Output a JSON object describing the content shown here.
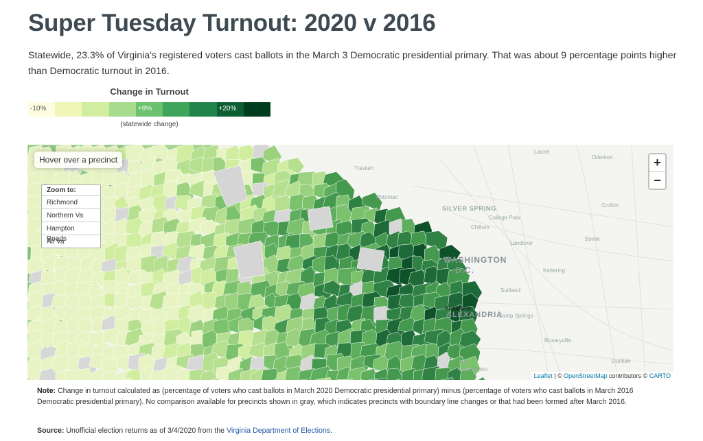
{
  "title": "Super Tuesday Turnout: 2020 v 2016",
  "dek": "Statewide, 23.3% of Virginia's registered voters cast ballots in the March 3 Democratic presidential primary. That was about 9 percentage points higher than Democratic turnout in 2016.",
  "legend": {
    "title": "Change in Turnout",
    "min_label": "-10%",
    "mid_label": "+9%",
    "max_label": "+20%",
    "note": "(statewide change)",
    "colors": [
      "#fffde1",
      "#f0f7b6",
      "#d1eda0",
      "#a7dc8e",
      "#6cc16e",
      "#3ea55a",
      "#22844a",
      "#0d5e33",
      "#003d1e"
    ]
  },
  "map": {
    "hover_text": "Hover over a precinct",
    "zoom_title": "Zoom to:",
    "zoom_options": [
      "Richmond",
      "Northern Va",
      "Hampton Roads",
      "All Va"
    ],
    "zoom_in": "+",
    "zoom_out": "−",
    "attribution": {
      "leaflet": "Leaflet",
      "sep": " | © ",
      "osm": "OpenStreetMap",
      "contrib": " contributors © ",
      "carto": "CARTO"
    },
    "places": {
      "laurel": "Laurel",
      "odenton": "Odenton",
      "travilah": "Travilah",
      "potomac": "Potomac",
      "silver_spring": "SILVER SPRING",
      "college_park": "College Park",
      "chillum": "Chillum",
      "crofton": "Crofton",
      "landover": "Landover",
      "bowie": "Bowie",
      "washington": "WASHINGTON",
      "dc": "D.C.",
      "kettering": "Kettering",
      "suitland": "Suitland",
      "alexandria": "Alexandria",
      "alexandria_map": "ALEXANDRIA",
      "camp_springs": "Camp Springs",
      "rosaryville": "Rosaryville",
      "dunkirk": "Dunkirk",
      "fort_washington": "Fort\nWashington"
    }
  },
  "note_label": "Note:",
  "note_text": "Change in turnout calculated as (percentage of voters who cast ballots in March 2020 Democratic presidential primary) minus (percentage of voters who cast ballots in March 2016 Democratic presidential primary). No comparison available for precincts shown in gray, which indicates precincts with boundary line changes or that had been formed after March 2016.",
  "source_label": "Source:",
  "source_text": "Unofficial election returns as of 3/4/2020 from the ",
  "source_link": "Virginia Department of Elections",
  "source_end": "."
}
